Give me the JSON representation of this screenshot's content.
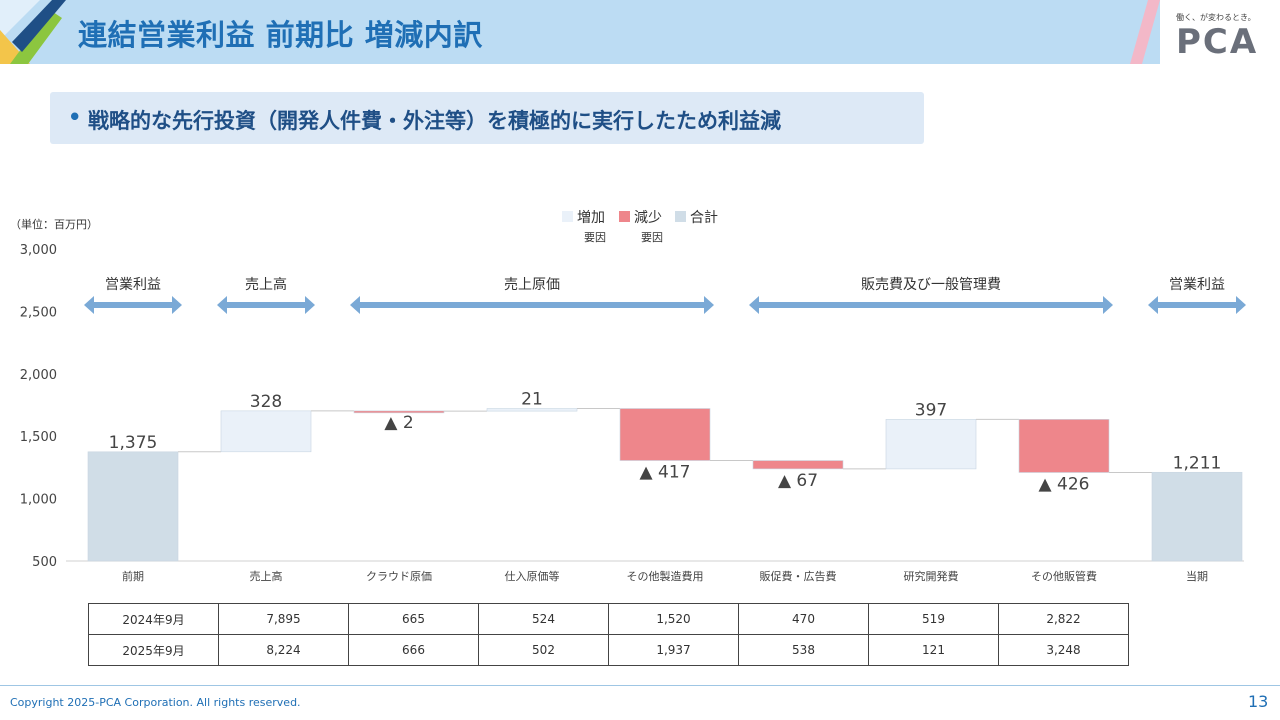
{
  "header": {
    "title": "連結営業利益 前期比 増減内訳",
    "logo_tagline": "働く、が変わるとき。",
    "logo_text": "PCA"
  },
  "subtitle": "戦略的な先行投資（開発人件費・外注等）を積極的に実行したため利益減",
  "chart_data": {
    "type": "waterfall",
    "unit_label": "（単位：百万円）",
    "ylim": [
      500,
      3000
    ],
    "yticks": [
      "3,000",
      "2,500",
      "2,000",
      "1,500",
      "1,000",
      "500"
    ],
    "legend": [
      {
        "label": "増加",
        "sub": "要因",
        "color": "#eaf1f9"
      },
      {
        "label": "減少",
        "sub": "要因",
        "color": "#ee868b"
      },
      {
        "label": "合計",
        "sub": "",
        "color": "#d0dde7"
      }
    ],
    "groups": [
      {
        "label": "営業利益"
      },
      {
        "label": "売上高"
      },
      {
        "label": "売上原価"
      },
      {
        "label": "販売費及び一般管理費"
      },
      {
        "label": "営業利益"
      }
    ],
    "categories": [
      "前期",
      "売上高",
      "クラウド原価",
      "仕入原価等",
      "その他製造費用",
      "販促費・広告費",
      "研究開発費",
      "その他販管費",
      "当期"
    ],
    "bars": [
      {
        "kind": "total",
        "value": 1375,
        "label": "1,375"
      },
      {
        "kind": "increase",
        "value": 328,
        "label": "328"
      },
      {
        "kind": "decrease",
        "value": 2,
        "label": "▲ 2"
      },
      {
        "kind": "increase",
        "value": 21,
        "label": "21"
      },
      {
        "kind": "decrease",
        "value": 417,
        "label": "▲ 417"
      },
      {
        "kind": "decrease",
        "value": 67,
        "label": "▲ 67"
      },
      {
        "kind": "increase",
        "value": 397,
        "label": "397"
      },
      {
        "kind": "decrease",
        "value": 426,
        "label": "▲ 426"
      },
      {
        "kind": "total",
        "value": 1211,
        "label": "1,211"
      }
    ],
    "colors": {
      "increase": "#eaf1f9",
      "decrease": "#ee868b",
      "total": "#d0dde7",
      "arrow": "#7aa9d6"
    }
  },
  "table": {
    "rows": [
      {
        "label": "2024年9月",
        "values": [
          "7,895",
          "665",
          "524",
          "1,520",
          "470",
          "519",
          "2,822"
        ]
      },
      {
        "label": "2025年9月",
        "values": [
          "8,224",
          "666",
          "502",
          "1,937",
          "538",
          "121",
          "3,248"
        ]
      }
    ]
  },
  "footer": {
    "copyright": "Copyright 2025-PCA Corporation. All rights reserved.",
    "page": "13"
  }
}
